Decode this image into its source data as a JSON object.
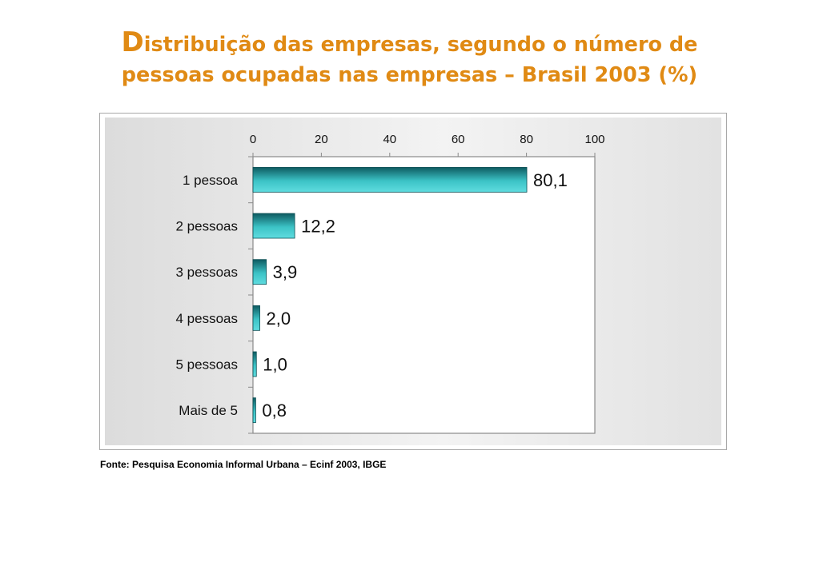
{
  "title": {
    "initial": "D",
    "line1_rest": "istribuição das empresas, segundo o número de",
    "line2": "pessoas ocupadas nas empresas – Brasil 2003 (%)"
  },
  "source": "Fonte: Pesquisa Economia Informal Urbana – Ecinf 2003, IBGE",
  "colors": {
    "title": "#e08a14",
    "bar_dark": "#0e5a60",
    "bar_light": "#4fd3d6"
  },
  "chart_data": {
    "type": "bar",
    "orientation": "horizontal",
    "categories": [
      "1 pessoa",
      "2 pessoas",
      "3 pessoas",
      "4 pessoas",
      "5 pessoas",
      "Mais de 5"
    ],
    "values": [
      80.1,
      12.2,
      3.9,
      2.0,
      1.0,
      0.8
    ],
    "value_labels": [
      "80,1",
      "12,2",
      "3,9",
      "2,0",
      "1,0",
      "0,8"
    ],
    "xlim": [
      0,
      100
    ],
    "x_ticks": [
      0,
      20,
      40,
      60,
      80,
      100
    ],
    "x_axis_position": "top",
    "grid": false,
    "legend": false
  }
}
